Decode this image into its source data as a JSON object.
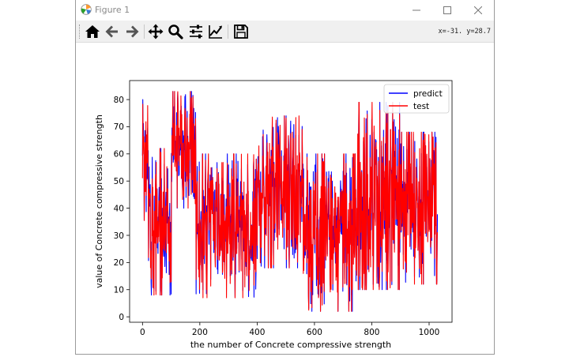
{
  "window": {
    "title": "Figure 1",
    "minimize_glyph": "—",
    "maximize_glyph": "☐",
    "close_glyph": "✕"
  },
  "toolbar": {
    "buttons": [
      {
        "name": "home",
        "icon": "home-icon"
      },
      {
        "name": "back",
        "icon": "arrow-left-icon"
      },
      {
        "name": "forward",
        "icon": "arrow-right-icon"
      },
      {
        "name": "pan",
        "icon": "move-icon"
      },
      {
        "name": "zoom",
        "icon": "magnifier-icon"
      },
      {
        "name": "configure-subplots",
        "icon": "sliders-icon"
      },
      {
        "name": "edit-axis",
        "icon": "line-chart-icon"
      },
      {
        "name": "save",
        "icon": "floppy-disk-icon"
      }
    ],
    "coords_readout": "x=-31.  y=28.7"
  },
  "chart_data": {
    "type": "line",
    "xlabel": "the number of Concrete compressive strength",
    "ylabel": "value of Concrete compressive strength",
    "xlim": [
      -45,
      1080
    ],
    "ylim": [
      -2,
      87
    ],
    "xticks": [
      0,
      200,
      400,
      600,
      800,
      1000
    ],
    "yticks": [
      0,
      10,
      20,
      30,
      40,
      50,
      60,
      70,
      80
    ],
    "grid": false,
    "legend": "top-right",
    "n_points": 1030,
    "series": [
      {
        "name": "predict",
        "color": "#0000ff",
        "approx_mean": 35,
        "approx_range": [
          9,
          79
        ]
      },
      {
        "name": "test",
        "color": "#ff0000",
        "approx_mean": 35,
        "approx_range": [
          2,
          83
        ]
      }
    ],
    "segments": [
      {
        "x": [
          0,
          20
        ],
        "low": 20,
        "high": 80
      },
      {
        "x": [
          20,
          100
        ],
        "low": 8,
        "high": 62
      },
      {
        "x": [
          100,
          185
        ],
        "low": 40,
        "high": 83
      },
      {
        "x": [
          185,
          400
        ],
        "low": 7,
        "high": 60
      },
      {
        "x": [
          400,
          560
        ],
        "low": 18,
        "high": 74
      },
      {
        "x": [
          560,
          750
        ],
        "low": 2,
        "high": 60
      },
      {
        "x": [
          750,
          900
        ],
        "low": 10,
        "high": 79
      },
      {
        "x": [
          900,
          1030
        ],
        "low": 12,
        "high": 68
      }
    ]
  }
}
